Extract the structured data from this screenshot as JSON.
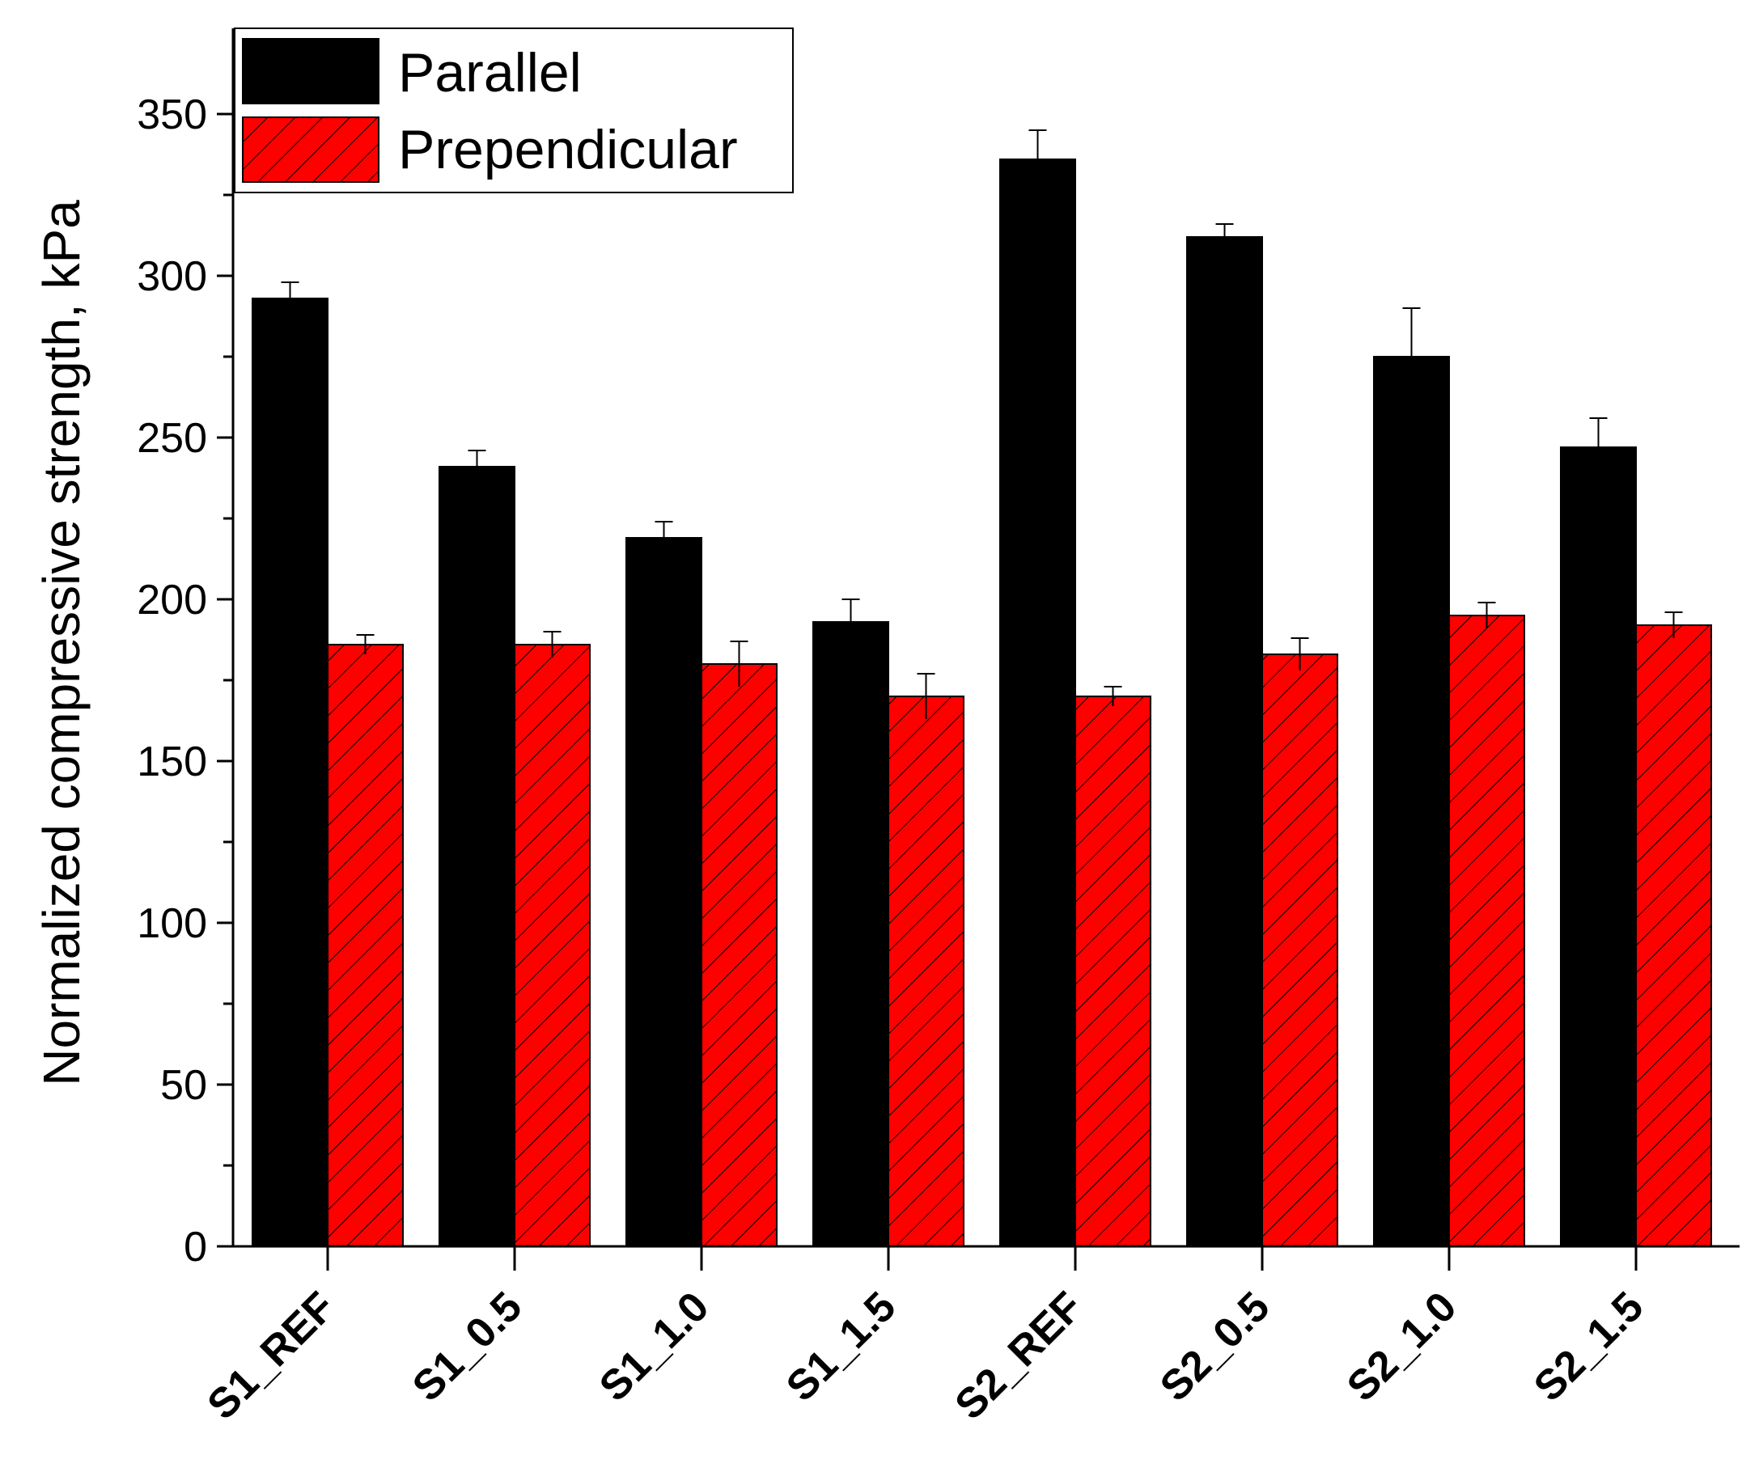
{
  "chart_data": {
    "type": "bar",
    "categories": [
      "S1_REF",
      "S1_0.5",
      "S1_1.0",
      "S1_1.5",
      "S2_REF",
      "S2_0.5",
      "S2_1.0",
      "S2_1.5"
    ],
    "series": [
      {
        "name": "Parallel",
        "values": [
          293,
          241,
          219,
          193,
          336,
          312,
          275,
          247
        ],
        "errors": [
          5,
          5,
          5,
          7,
          9,
          4,
          15,
          9
        ],
        "color": "#000000",
        "pattern": "solid"
      },
      {
        "name": "Prependicular",
        "values": [
          186,
          186,
          180,
          170,
          170,
          183,
          195,
          192
        ],
        "errors": [
          3,
          4,
          7,
          7,
          3,
          5,
          4,
          4
        ],
        "color": "#ff0000",
        "pattern": "diagonal-hatch"
      }
    ],
    "title": "",
    "xlabel": "",
    "ylabel": "Normalized compressive strength, kPa",
    "ylim": [
      0,
      375
    ],
    "yticks": [
      0,
      50,
      100,
      150,
      200,
      250,
      300,
      350
    ],
    "yticks_minor_step": 25,
    "grid": false,
    "legend_position": "top-left"
  }
}
